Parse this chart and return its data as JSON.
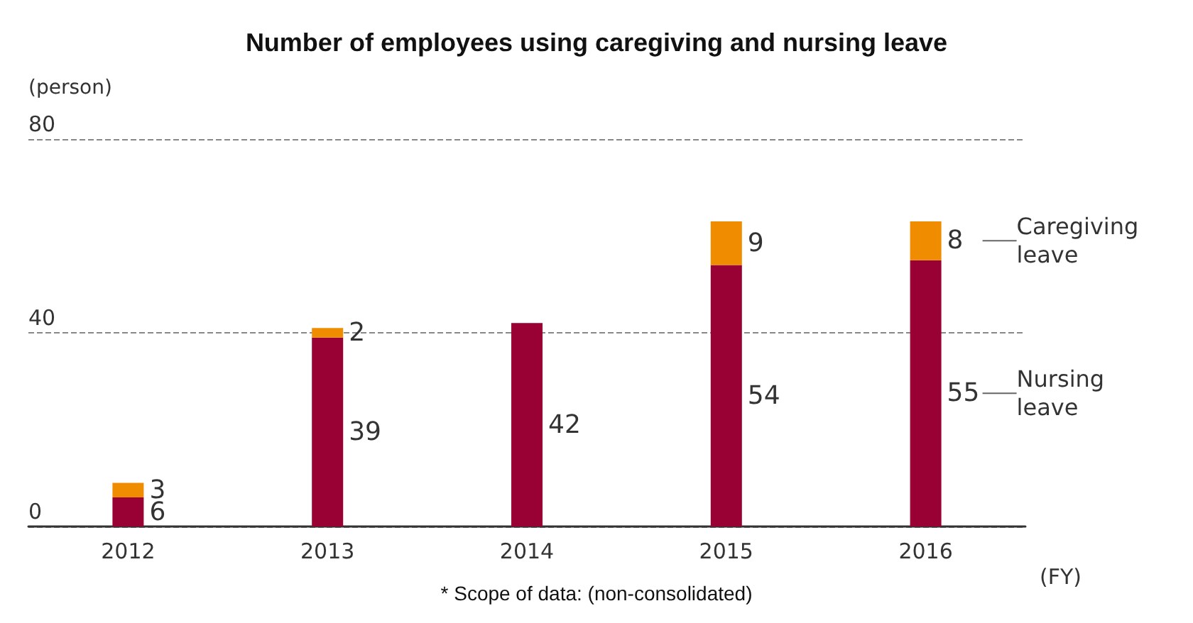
{
  "chart_data": {
    "type": "bar",
    "title": "Number of employees using caregiving and nursing leave",
    "ylabel": "(person)",
    "xlabel": "(FY)",
    "categories": [
      "2012",
      "2013",
      "2014",
      "2015",
      "2016"
    ],
    "stacked": true,
    "data_labels": true,
    "grid": "y",
    "ylim": [
      0,
      80
    ],
    "yticks": [
      0,
      40,
      80
    ],
    "series": [
      {
        "name": "Nursing leave",
        "color": "#990033",
        "values": [
          6,
          39,
          42,
          54,
          55
        ]
      },
      {
        "name": "Caregiving leave",
        "color": "#f08c00",
        "values": [
          3,
          2,
          null,
          9,
          8
        ]
      }
    ],
    "annotations": [
      "* Scope of data: (non-consolidated)"
    ]
  }
}
